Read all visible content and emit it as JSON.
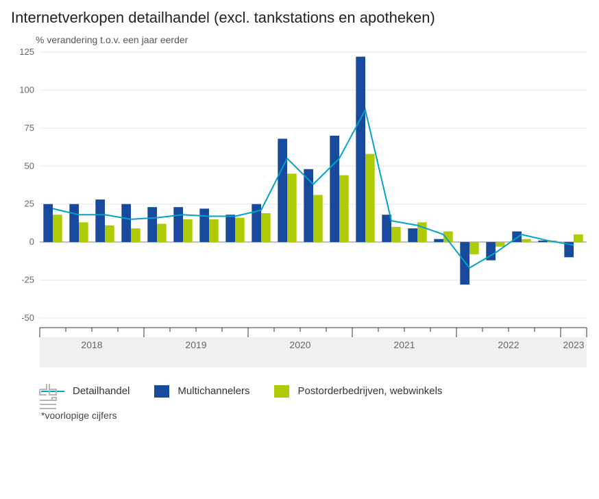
{
  "title": "Internetverkopen detailhandel (excl. tankstations en apotheken)",
  "subtitle": "% verandering t.o.v. een jaar eerder",
  "footnote": "*voorlopige cijfers",
  "legend": {
    "line": "Detailhandel",
    "bar1": "Multichannelers",
    "bar2": "Postorderbedrijven, webwinkels"
  },
  "chart": {
    "type": "bar+line",
    "background_color": "#ffffff",
    "grid_color": "#e6e6e6",
    "zero_line_color": "#bdbdbd",
    "x_band_color": "#f0f0f0",
    "bar1_color": "#174a9c",
    "bar2_color": "#afcb05",
    "line_color": "#00a1cd",
    "axis_label_color": "#666666",
    "title_fontsize": 22,
    "subtitle_fontsize": 14,
    "axis_fontsize": 13,
    "legend_fontsize": 15,
    "line_width": 2,
    "bar_width_ratio": 0.36,
    "ylim": [
      -50,
      125
    ],
    "ytick_step": 25,
    "yticks": [
      -50,
      -25,
      0,
      25,
      50,
      75,
      100,
      125
    ],
    "year_groups": [
      {
        "label": "2018",
        "start": 0,
        "count": 4
      },
      {
        "label": "2019",
        "start": 4,
        "count": 4
      },
      {
        "label": "2020",
        "start": 8,
        "count": 4
      },
      {
        "label": "2021",
        "start": 12,
        "count": 4
      },
      {
        "label": "2022",
        "start": 16,
        "count": 4
      },
      {
        "label": "2023",
        "start": 20,
        "count": 1
      }
    ],
    "series": {
      "multichannelers": [
        25,
        25,
        28,
        25,
        23,
        23,
        22,
        18,
        25,
        68,
        48,
        70,
        122,
        18,
        9,
        2,
        -28,
        -12,
        7,
        1,
        -10
      ],
      "postorder": [
        18,
        13,
        11,
        9,
        12,
        15,
        15,
        16,
        19,
        45,
        31,
        44,
        58,
        10,
        13,
        7,
        -8,
        -3,
        2,
        1,
        5
      ],
      "detailhandel": [
        22,
        18,
        18,
        15,
        16,
        18,
        17,
        17,
        21,
        55,
        38,
        55,
        87,
        14,
        11,
        5,
        -17,
        -7,
        5,
        1,
        -2
      ]
    }
  }
}
